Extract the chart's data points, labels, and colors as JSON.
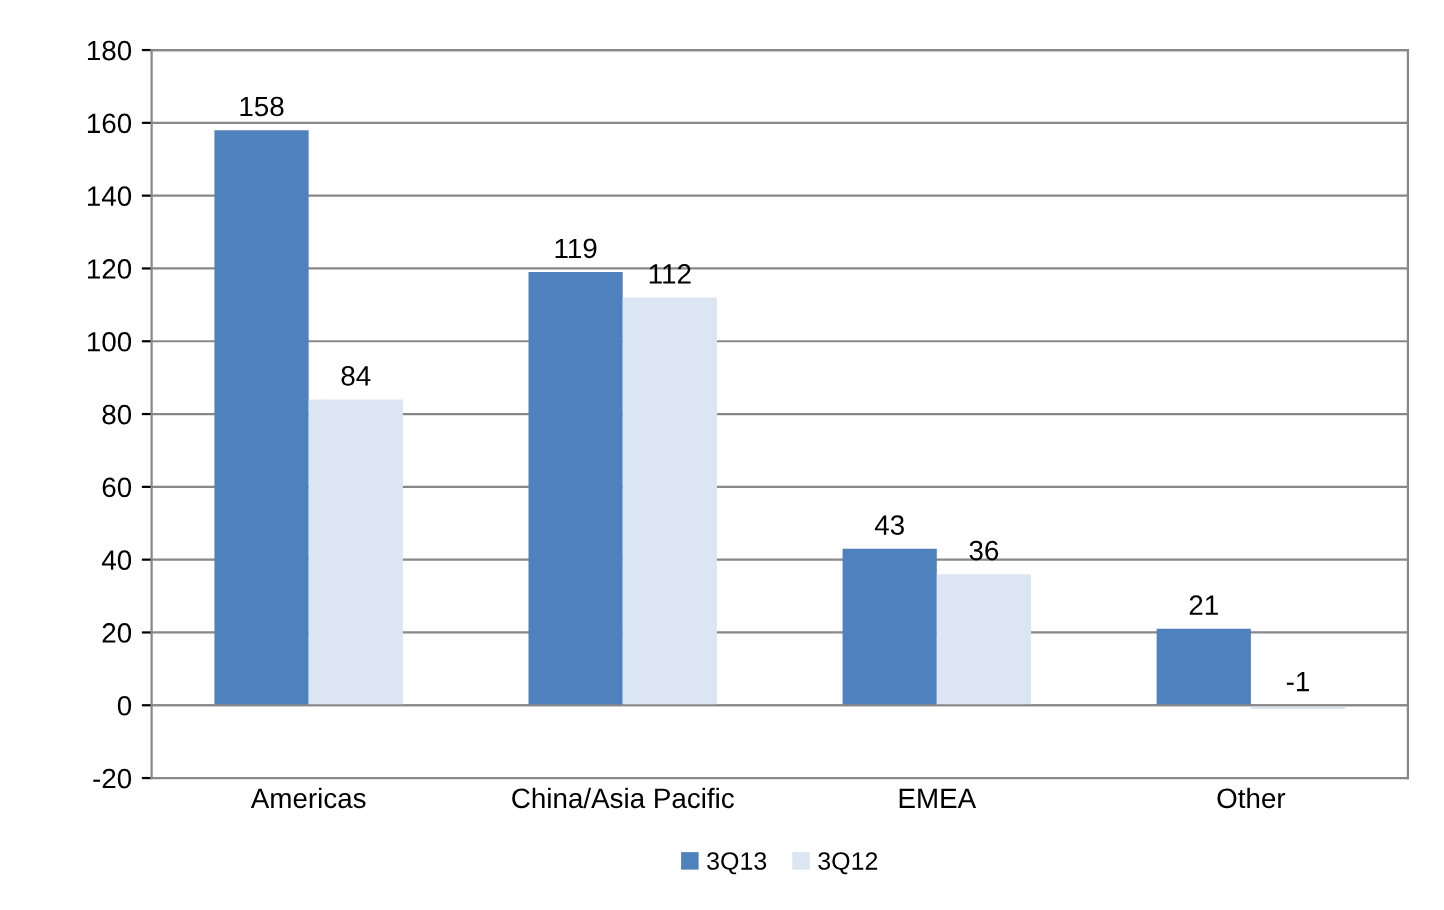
{
  "chart_data": {
    "type": "bar",
    "categories": [
      "Americas",
      "China/Asia Pacific",
      "EMEA",
      "Other"
    ],
    "series": [
      {
        "name": "3Q13",
        "color": "#4f81bd",
        "values": [
          158,
          119,
          43,
          21
        ]
      },
      {
        "name": "3Q12",
        "color": "#dce6f2",
        "values": [
          84,
          112,
          36,
          -1
        ]
      }
    ],
    "ylim": [
      -20,
      180
    ],
    "yticks": [
      -20,
      0,
      20,
      40,
      60,
      80,
      100,
      120,
      140,
      160,
      180
    ],
    "grid": "y",
    "legend": "bottom",
    "data_labels": true
  }
}
